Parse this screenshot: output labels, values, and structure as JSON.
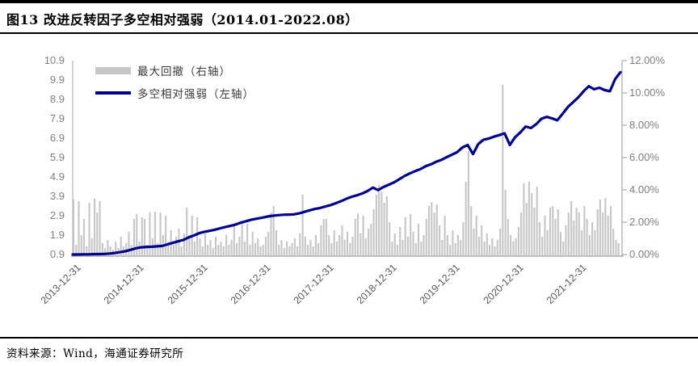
{
  "page": {
    "title": "图13 改进反转因子多空相对强弱（2014.01-2022.08）",
    "source": "资料来源：Wind，海通证券研究所"
  },
  "colors": {
    "line": "#000090",
    "bar": "#c6c6c6",
    "axis_line": "#a9a9a9",
    "left_axis_line": "#c3c3c3",
    "y_label_text": "#7f7f7f",
    "x_label_text": "#595959",
    "rule": "#000000"
  },
  "chart_data": {
    "type": "line+bar",
    "title": "改进反转因子多空相对强弱（2014.01-2022.08）",
    "grid": false,
    "legend_position": "top-left-inside",
    "left_axis": {
      "min": 0.9,
      "max": 10.9,
      "tick_labels": [
        "10.9",
        "9.9",
        "8.9",
        "7.9",
        "6.9",
        "5.9",
        "4.9",
        "3.9",
        "2.9",
        "1.9",
        "0.9"
      ]
    },
    "right_axis": {
      "min": 0,
      "max": 12,
      "unit": "%",
      "tick_labels": [
        "12.00%",
        "10.00%",
        "8.00%",
        "6.00%",
        "4.00%",
        "2.00%",
        "0.00%"
      ]
    },
    "x_axis": {
      "start": "2013-12-31",
      "end": "2022-08-31",
      "tick_labels": [
        "2013-12-31",
        "2014-12-31",
        "2015-12-31",
        "2016-12-31",
        "2017-12-31",
        "2018-12-31",
        "2019-12-31",
        "2020-12-31",
        "2021-12-31"
      ]
    },
    "series": [
      {
        "name": "最大回撤（右轴）",
        "type": "bar",
        "axis": "right",
        "color": "#c6c6c6",
        "sampling": "semi-monthly 2014-01 to 2022-08",
        "unit": "%",
        "values": [
          3.4,
          0.6,
          3.3,
          1.2,
          2.2,
          0.5,
          3.2,
          1.0,
          3.45,
          2.6,
          3.3,
          0.7,
          0.4,
          0.9,
          0.5,
          0.3,
          0.8,
          0.4,
          1.1,
          0.5,
          0.7,
          1.4,
          0.6,
          2.2,
          2.5,
          0.8,
          2.3,
          2.2,
          0.6,
          2.6,
          1.0,
          2.65,
          0.7,
          2.6,
          1.2,
          2.4,
          0.8,
          1.5,
          0.6,
          1.1,
          1.6,
          0.5,
          1.3,
          2.9,
          1.2,
          2.4,
          0.8,
          2.3,
          1.0,
          0.5,
          1.3,
          0.6,
          0.9,
          0.4,
          1.1,
          0.6,
          0.8,
          0.5,
          1.2,
          0.6,
          0.9,
          1.75,
          0.7,
          1.1,
          2.1,
          0.8,
          1.9,
          0.6,
          1.4,
          0.7,
          1.0,
          0.5,
          0.6,
          1.1,
          1.4,
          2.6,
          3.0,
          1.5,
          0.6,
          0.9,
          0.4,
          0.8,
          0.5,
          0.7,
          1.0,
          0.5,
          1.3,
          3.7,
          1.1,
          0.6,
          0.9,
          0.5,
          1.2,
          0.7,
          1.8,
          2.2,
          2.2,
          1.2,
          0.7,
          1.5,
          0.8,
          1.2,
          1.8,
          0.9,
          1.4,
          0.7,
          1.1,
          2.2,
          2.55,
          1.3,
          2.4,
          1.0,
          1.6,
          1.9,
          2.8,
          3.7,
          4.3,
          3.9,
          3.2,
          3.6,
          2.0,
          0.8,
          1.3,
          0.6,
          1.7,
          0.9,
          2.3,
          1.1,
          2.5,
          1.4,
          0.7,
          1.9,
          0.8,
          1.2,
          2.2,
          3.0,
          3.25,
          2.6,
          3.1,
          1.8,
          0.9,
          2.4,
          1.2,
          0.6,
          1.5,
          0.7,
          1.2,
          0.9,
          2.0,
          4.5,
          6.4,
          3.0,
          1.6,
          2.4,
          1.1,
          1.8,
          0.8,
          1.3,
          0.6,
          1.0,
          0.5,
          0.9,
          1.6,
          10.5,
          4.0,
          2.2,
          1.2,
          0.8,
          1.0,
          1.7,
          2.6,
          4.4,
          3.2,
          4.5,
          3.8,
          2.9,
          4.2,
          2.0,
          1.1,
          2.4,
          1.5,
          2.9,
          3.0,
          2.2,
          2.8,
          1.4,
          0.8,
          1.8,
          2.6,
          3.3,
          2.1,
          2.9,
          2.6,
          1.5,
          3.0,
          2.2,
          1.2,
          2.0,
          1.5,
          2.8,
          3.4,
          2.6,
          3.5,
          2.4,
          3.0,
          1.6,
          0.9,
          0.7
        ]
      },
      {
        "name": "多空相对强弱（左轴）",
        "type": "line",
        "axis": "left",
        "color": "#000090",
        "sampling": "monthly 2013-12 to 2022-08",
        "values": [
          0.9,
          0.9,
          0.91,
          0.91,
          0.92,
          0.92,
          0.93,
          0.95,
          0.98,
          1.02,
          1.07,
          1.14,
          1.22,
          1.27,
          1.29,
          1.3,
          1.32,
          1.34,
          1.42,
          1.5,
          1.58,
          1.65,
          1.78,
          1.88,
          2.0,
          2.07,
          2.12,
          2.18,
          2.25,
          2.32,
          2.38,
          2.45,
          2.55,
          2.62,
          2.7,
          2.75,
          2.8,
          2.86,
          2.9,
          2.93,
          2.95,
          2.96,
          2.97,
          3.02,
          3.1,
          3.18,
          3.25,
          3.3,
          3.38,
          3.45,
          3.55,
          3.66,
          3.78,
          3.88,
          3.96,
          4.05,
          4.18,
          4.35,
          4.22,
          4.38,
          4.5,
          4.62,
          4.78,
          4.95,
          5.08,
          5.2,
          5.3,
          5.45,
          5.55,
          5.68,
          5.78,
          5.92,
          6.05,
          6.18,
          6.42,
          6.55,
          6.08,
          6.6,
          6.82,
          6.88,
          6.98,
          7.06,
          7.15,
          6.55,
          6.95,
          7.2,
          7.5,
          7.42,
          7.62,
          7.9,
          8.0,
          7.92,
          7.82,
          8.15,
          8.5,
          8.75,
          9.0,
          9.32,
          9.58,
          9.42,
          9.5,
          9.38,
          9.32,
          9.95,
          10.3
        ]
      }
    ]
  }
}
